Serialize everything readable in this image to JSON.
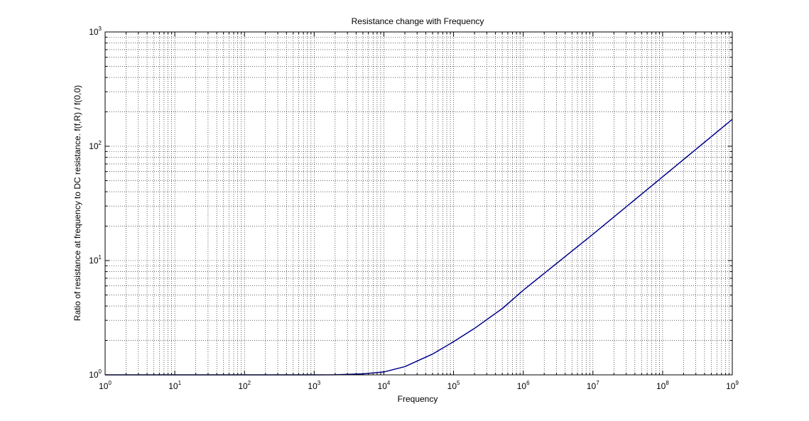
{
  "chart_data": {
    "type": "line",
    "title": "Resistance change with Frequency",
    "xlabel": "Frequency",
    "ylabel": "Ratio of resistance at frequency to DC resistance. f(f,R) / f(0,0)",
    "xscale": "log",
    "yscale": "log",
    "xlim": [
      1,
      1000000000
    ],
    "ylim": [
      1,
      1000
    ],
    "grid": true,
    "x_ticks": [
      {
        "base": "10",
        "exp": "0"
      },
      {
        "base": "10",
        "exp": "1"
      },
      {
        "base": "10",
        "exp": "2"
      },
      {
        "base": "10",
        "exp": "3"
      },
      {
        "base": "10",
        "exp": "4"
      },
      {
        "base": "10",
        "exp": "5"
      },
      {
        "base": "10",
        "exp": "6"
      },
      {
        "base": "10",
        "exp": "7"
      },
      {
        "base": "10",
        "exp": "8"
      },
      {
        "base": "10",
        "exp": "9"
      }
    ],
    "y_ticks": [
      {
        "base": "10",
        "exp": "0"
      },
      {
        "base": "10",
        "exp": "1"
      },
      {
        "base": "10",
        "exp": "2"
      },
      {
        "base": "10",
        "exp": "3"
      }
    ],
    "series": [
      {
        "color": "#00008b",
        "x": [
          1,
          10,
          100,
          1000,
          2000,
          5000,
          10000,
          20000,
          50000,
          100000,
          200000,
          500000,
          1000000,
          10000000,
          100000000,
          1000000000
        ],
        "y": [
          1,
          1,
          1,
          1,
          1.002,
          1.02,
          1.06,
          1.18,
          1.52,
          1.95,
          2.55,
          3.8,
          5.5,
          17,
          54,
          172
        ]
      }
    ]
  }
}
